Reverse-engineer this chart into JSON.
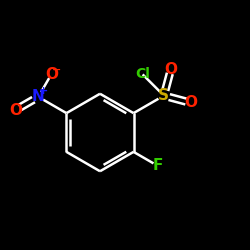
{
  "background_color": "#000000",
  "bond_color": "#ffffff",
  "bond_width": 1.8,
  "atom_colors": {
    "C": "#ffffff",
    "N": "#1a1aff",
    "O": "#ff2200",
    "S": "#ccaa00",
    "F": "#33cc00",
    "Cl": "#33cc00"
  },
  "font_size_main": 11,
  "font_size_small": 8,
  "font_size_cl": 10
}
